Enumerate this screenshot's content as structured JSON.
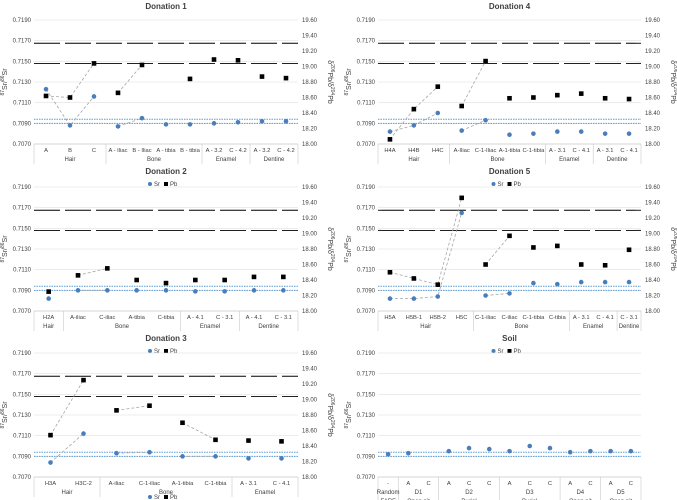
{
  "figure": {
    "left_axis_label": "87Sr/86Sr",
    "right_axis_label": "δ206Pb/δ204Pb",
    "legend_sr": "Sr",
    "legend_pb": "Pb",
    "colors": {
      "sr": "#4a7ebb",
      "pb": "#000000",
      "refline": "#000000",
      "band": "#5b9bd5",
      "grid": "#d9d9d9"
    }
  },
  "chart_data": [
    {
      "type": "scatter",
      "title": "Donation 1",
      "ylabel": "87Sr/86Sr",
      "ylim": [
        0.707,
        0.719
      ],
      "y2label": "δ206Pb/δ204Pb",
      "y2lim": [
        18.0,
        19.6
      ],
      "yticks": [
        "0.7190",
        "0.7170",
        "0.7150",
        "0.7130",
        "0.7110",
        "0.7090",
        "0.7070"
      ],
      "y2ticks": [
        "19.60",
        "19.40",
        "19.20",
        "19.00",
        "18.80",
        "18.60",
        "18.40",
        "18.20",
        "18.00"
      ],
      "categories": [
        "A",
        "B",
        "C",
        "A - Iliac",
        "B - Iliac",
        "A - tibia",
        "B - tibia",
        "A - 3.2",
        "C - 4.2",
        "A - 3.2",
        "C - 4.2"
      ],
      "groups": [
        {
          "label": "Hair",
          "start": 0,
          "end": 2
        },
        {
          "label": "Bone",
          "start": 3,
          "end": 6
        },
        {
          "label": "Enamel",
          "start": 7,
          "end": 8
        },
        {
          "label": "Dentine",
          "start": 9,
          "end": 10
        }
      ],
      "connect_groups": [
        [
          0,
          1,
          2
        ],
        [
          3,
          4
        ]
      ],
      "series": [
        {
          "name": "Sr",
          "axis": "left",
          "values": [
            0.7123,
            0.7088,
            0.7116,
            0.7087,
            0.7095,
            0.7089,
            0.7089,
            0.709,
            0.7091,
            0.7092,
            0.7092
          ]
        },
        {
          "name": "Pb",
          "axis": "right",
          "values": [
            18.62,
            18.6,
            19.04,
            18.66,
            19.02,
            null,
            18.84,
            19.09,
            19.08,
            18.87,
            18.85
          ]
        }
      ],
      "pb_reference_lines": [
        19.3,
        19.04
      ],
      "sr_band": [
        0.709,
        0.7094
      ]
    },
    {
      "type": "scatter",
      "title": "Donation 4",
      "ylabel": "87Sr/86Sr",
      "ylim": [
        0.707,
        0.719
      ],
      "y2label": "δ206Pb/δ204Pb",
      "y2lim": [
        18.0,
        19.6
      ],
      "yticks": [
        "0.7190",
        "0.7170",
        "0.7150",
        "0.7130",
        "0.7110",
        "0.7090",
        "0.7070"
      ],
      "y2ticks": [
        "19.60",
        "19.40",
        "19.20",
        "19.00",
        "18.80",
        "18.60",
        "18.40",
        "18.20",
        "18.00"
      ],
      "categories": [
        "H4A",
        "H4B",
        "H4C",
        "A-Iliac",
        "C-1-Iliac",
        "A-1-tibia",
        "C-1-tibia",
        "A - 3.1",
        "C - 4.1",
        "A - 3.1",
        "C - 4.1"
      ],
      "groups": [
        {
          "label": "Hair",
          "start": 0,
          "end": 2
        },
        {
          "label": "Bone",
          "start": 3,
          "end": 6
        },
        {
          "label": "Enamel",
          "start": 7,
          "end": 8
        },
        {
          "label": "Dentine",
          "start": 9,
          "end": 10
        }
      ],
      "connect_groups": [
        [
          0,
          1,
          2
        ],
        [
          3,
          4
        ]
      ],
      "series": [
        {
          "name": "Sr",
          "axis": "left",
          "values": [
            0.7082,
            0.7088,
            0.71,
            0.7083,
            0.7093,
            0.7079,
            0.708,
            0.7082,
            0.7082,
            0.708,
            0.708
          ]
        },
        {
          "name": "Pb",
          "axis": "right",
          "values": [
            18.06,
            18.45,
            18.74,
            18.49,
            19.07,
            18.59,
            18.6,
            18.63,
            18.65,
            18.59,
            18.58
          ]
        }
      ],
      "pb_reference_lines": [
        19.3,
        19.04
      ],
      "sr_band": [
        0.709,
        0.7094
      ]
    },
    {
      "type": "scatter",
      "title": "Donation 2",
      "ylabel": "87Sr/86Sr",
      "ylim": [
        0.707,
        0.719
      ],
      "y2label": "δ206Pb/δ204Pb",
      "y2lim": [
        18.0,
        19.6
      ],
      "yticks": [
        "0.7190",
        "0.7170",
        "0.7150",
        "0.7130",
        "0.7110",
        "0.7090",
        "0.7070"
      ],
      "y2ticks": [
        "19.60",
        "19.40",
        "19.20",
        "19.00",
        "18.80",
        "18.60",
        "18.40",
        "18.20",
        "18.00"
      ],
      "categories": [
        "H2A",
        "A-iliac",
        "C-iliac",
        "A-tibia",
        "C-tibia",
        "A - 4.1",
        "C - 3.1",
        "A - 4.1",
        "C - 3.1"
      ],
      "groups": [
        {
          "label": "Hair",
          "start": 0,
          "end": 0
        },
        {
          "label": "Bone",
          "start": 1,
          "end": 4
        },
        {
          "label": "Enamel",
          "start": 5,
          "end": 6
        },
        {
          "label": "Dentine",
          "start": 7,
          "end": 8
        }
      ],
      "connect_groups": [
        [
          1,
          2
        ]
      ],
      "series": [
        {
          "name": "Sr",
          "axis": "left",
          "values": [
            0.7082,
            0.709,
            0.709,
            0.709,
            0.709,
            0.7089,
            0.7089,
            0.709,
            0.709
          ]
        },
        {
          "name": "Pb",
          "axis": "right",
          "values": [
            18.25,
            18.46,
            18.55,
            18.4,
            18.36,
            18.4,
            18.4,
            18.44,
            18.44
          ]
        }
      ],
      "pb_reference_lines": [
        19.3,
        19.04
      ],
      "sr_band": [
        0.709,
        0.7094
      ]
    },
    {
      "type": "scatter",
      "title": "Donation 5",
      "ylabel": "87Sr/86Sr",
      "ylim": [
        0.707,
        0.719
      ],
      "y2label": "δ206Pb/δ204Pb",
      "y2lim": [
        18.0,
        19.6
      ],
      "yticks": [
        "0.7190",
        "0.7170",
        "0.7150",
        "0.7130",
        "0.7110",
        "0.7090",
        "0.7070"
      ],
      "y2ticks": [
        "19.60",
        "19.40",
        "19.20",
        "19.00",
        "18.80",
        "18.60",
        "18.40",
        "18.20",
        "18.00"
      ],
      "categories": [
        "H5A",
        "H5B-1",
        "H5B-2",
        "H5C",
        "C-1-iliac",
        "C-iliac",
        "C-1-tibia",
        "C-tibia",
        "A - 3.1",
        "C - 4.1",
        "C - 3.1"
      ],
      "groups": [
        {
          "label": "Hair",
          "start": 0,
          "end": 3
        },
        {
          "label": "Bone",
          "start": 4,
          "end": 7
        },
        {
          "label": "Enamel",
          "start": 8,
          "end": 9
        },
        {
          "label": "Dentine",
          "start": 10,
          "end": 10
        }
      ],
      "connect_groups": [
        [
          0,
          1,
          2,
          3
        ],
        [
          4,
          5
        ]
      ],
      "series": [
        {
          "name": "Sr",
          "axis": "left",
          "values": [
            0.7082,
            0.7082,
            0.7084,
            0.7165,
            0.7085,
            0.7087,
            0.7097,
            0.7096,
            0.7098,
            0.7098,
            0.7098
          ]
        },
        {
          "name": "Pb",
          "axis": "right",
          "values": [
            18.5,
            18.42,
            18.34,
            19.46,
            18.6,
            18.97,
            18.82,
            18.84,
            18.6,
            18.59,
            18.79
          ]
        }
      ],
      "pb_reference_lines": [
        19.3,
        19.04
      ],
      "sr_band": [
        0.709,
        0.7094
      ]
    },
    {
      "type": "scatter",
      "title": "Donation 3",
      "ylabel": "87Sr/86Sr",
      "ylim": [
        0.707,
        0.719
      ],
      "y2label": "δ206Pb/δ204Pb",
      "y2lim": [
        18.0,
        19.6
      ],
      "yticks": [
        "0.7190",
        "0.7170",
        "0.7150",
        "0.7130",
        "0.7110",
        "0.7090",
        "0.7070"
      ],
      "y2ticks": [
        "19.60",
        "19.40",
        "19.20",
        "19.00",
        "18.80",
        "18.60",
        "18.40",
        "18.20",
        "18.00"
      ],
      "categories": [
        "H3A",
        "H3C-2",
        "A-iliac",
        "C-1-iliac",
        "A-1-tibia",
        "C-1-tibia",
        "A - 3.1",
        "C - 4.1"
      ],
      "groups": [
        {
          "label": "Hair",
          "start": 0,
          "end": 1
        },
        {
          "label": "Bone",
          "start": 2,
          "end": 5
        },
        {
          "label": "Enamel",
          "start": 6,
          "end": 7
        }
      ],
      "connect_groups": [
        [
          0,
          1
        ],
        [
          2,
          3
        ],
        [
          4,
          5
        ]
      ],
      "series": [
        {
          "name": "Sr",
          "axis": "left",
          "values": [
            0.7084,
            0.7112,
            0.7093,
            0.7094,
            0.709,
            0.709,
            0.7088,
            0.7088
          ]
        },
        {
          "name": "Pb",
          "axis": "right",
          "values": [
            18.54,
            19.25,
            18.86,
            18.92,
            18.7,
            18.48,
            18.47,
            18.46
          ]
        }
      ],
      "pb_reference_lines": [
        19.3,
        19.04
      ],
      "sr_band": [
        0.709,
        0.7094
      ]
    },
    {
      "type": "scatter",
      "title": "Soil",
      "ylabel": "87Sr/86Sr",
      "ylim": [
        0.707,
        0.719
      ],
      "y2label": "",
      "y2lim": [
        18.0,
        19.6
      ],
      "yticks": [
        "0.7190",
        "0.7170",
        "0.7150",
        "0.7130",
        "0.7110",
        "0.7090",
        "0.7070"
      ],
      "y2ticks": [],
      "categories": [
        "-",
        "A",
        "C",
        "A",
        "C",
        "C",
        "A",
        "C",
        "C",
        "A",
        "C",
        "A",
        "C"
      ],
      "groups": [
        {
          "label": "Random",
          "sublabel": "FARF",
          "start": 0,
          "end": 0
        },
        {
          "label": "D1",
          "sublabel": "Open pit",
          "start": 1,
          "end": 2
        },
        {
          "label": "D2",
          "sublabel": "Burial",
          "start": 3,
          "end": 5
        },
        {
          "label": "D3",
          "sublabel": "Burial",
          "start": 6,
          "end": 8
        },
        {
          "label": "D4",
          "sublabel": "Open pit",
          "start": 9,
          "end": 10
        },
        {
          "label": "D5",
          "sublabel": "Open pit",
          "start": 11,
          "end": 12
        }
      ],
      "connect_groups": [],
      "series": [
        {
          "name": "Sr",
          "axis": "left",
          "values": [
            0.7092,
            0.7093,
            null,
            0.7095,
            0.7098,
            0.7097,
            0.7095,
            0.71,
            0.7098,
            0.7094,
            0.7095,
            0.7095,
            0.7095
          ]
        }
      ],
      "pb_reference_lines": [],
      "sr_band": [
        0.709,
        0.7094
      ]
    }
  ]
}
